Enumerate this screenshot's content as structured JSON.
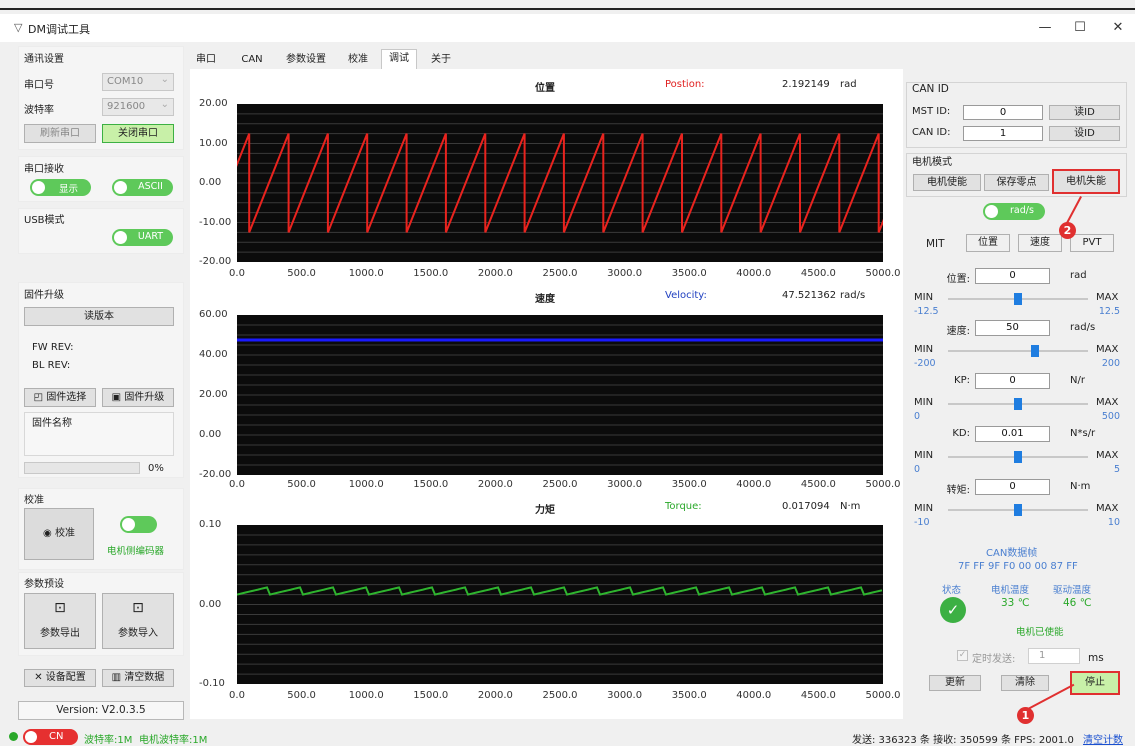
{
  "window": {
    "title": "DM调试工具",
    "min_label": "—",
    "max_label": "☐",
    "close_label": "✕"
  },
  "left": {
    "comm_group": "通讯设置",
    "port_label": "串口号",
    "port_value": "COM10",
    "baud_label": "波特率",
    "baud_value": "921600",
    "refresh_button": "刷新串口",
    "close_port_button": "关闭串口",
    "recv_group": "串口接收",
    "display_toggle": "显示",
    "ascii_toggle": "ASCII",
    "usb_group": "USB模式",
    "uart_toggle": "UART",
    "fw_group": "固件升级",
    "read_version_button": "读版本",
    "fw_rev": "FW REV:",
    "bl_rev": "BL REV:",
    "fw_select_button": "固件选择",
    "fw_upgrade_button": "固件升级",
    "fw_name_label": "固件名称",
    "progress_text": "0%",
    "progress": 0,
    "calib_group": "校准",
    "calib_button": "校准",
    "encoder_label": "电机侧编码器",
    "preset_group": "参数预设",
    "export_button": "参数导出",
    "import_button": "参数导入",
    "device_config_button": "设备配置",
    "clear_data_button": "清空数据",
    "version": "Version: V2.0.3.5"
  },
  "tabs": [
    "串口",
    "CAN",
    "参数设置",
    "校准",
    "调试",
    "关于"
  ],
  "active_tab": 4,
  "plots": [
    {
      "title": "位置",
      "name": "Postion:",
      "value": "2.192149",
      "unit": "rad",
      "name_color": "#e02020",
      "yticks": [
        "20.00",
        "10.00",
        "0.00",
        "-10.00",
        "-20.00"
      ]
    },
    {
      "title": "速度",
      "name": "Velocity:",
      "value": "47.521362",
      "unit": "rad/s",
      "name_color": "#2040c0",
      "yticks": [
        "60.00",
        "40.00",
        "20.00",
        "0.00",
        "-20.00"
      ]
    },
    {
      "title": "力矩",
      "name": "Torque:",
      "value": "0.017094",
      "unit": "N·m",
      "name_color": "#2aa82a",
      "yticks": [
        "0.10",
        "0.00",
        "-0.10"
      ]
    }
  ],
  "xticks": [
    "0.0",
    "500.0",
    "1000.0",
    "1500.0",
    "2000.0",
    "2500.0",
    "3000.0",
    "3500.0",
    "4000.0",
    "4500.0",
    "5000.0"
  ],
  "can": {
    "group": "CAN ID",
    "mst_label": "MST ID:",
    "mst_value": "0",
    "read_id_button": "读ID",
    "can_label": "CAN ID:",
    "can_value": "1",
    "set_id_button": "设ID",
    "mode_group": "电机模式",
    "enable_button": "电机使能",
    "save_zero_button": "保存零点",
    "disable_button": "电机失能",
    "unit_toggle": "rad/s",
    "modes": [
      "MIT",
      "位置",
      "速度",
      "PVT"
    ],
    "params": [
      {
        "label": "位置:",
        "value": "0",
        "unit": "rad",
        "min": "-12.5",
        "max": "12.5",
        "level": 0.5
      },
      {
        "label": "速度:",
        "value": "50",
        "unit": "rad/s",
        "min": "-200",
        "max": "200",
        "level": 0.62
      },
      {
        "label": "KP:",
        "value": "0",
        "unit": "N/r",
        "min": "0",
        "max": "500",
        "level": 0.5
      },
      {
        "label": "KD:",
        "value": "0.01",
        "unit": "N*s/r",
        "min": "0",
        "max": "5",
        "level": 0.5
      },
      {
        "label": "转矩:",
        "value": "0",
        "unit": "N·m",
        "min": "-10",
        "max": "10",
        "level": 0.5
      }
    ],
    "min_label": "MIN",
    "max_label": "MAX",
    "frame_title": "CAN数据帧",
    "frame_data": "7F FF 9F F0 00 00 87 FF",
    "status_label": "状态",
    "motor_temp_label": "电机温度",
    "driver_temp_label": "驱动温度",
    "motor_temp": "33 ℃",
    "driver_temp": "46 ℃",
    "enabled_text": "电机已使能",
    "timed_send_label": "定时发送:",
    "timed_send_value": "1",
    "ms_label": "ms",
    "update_button": "更新",
    "clear_button": "清除",
    "stop_button": "停止"
  },
  "status": {
    "cn_toggle": "CN",
    "baud": "波特率:1M",
    "motor_baud": "电机波特率:1M",
    "stats": "发送: 336323 条 接收: 350599 条 FPS: 2001.0",
    "clear_stats": "清空计数"
  },
  "annotations": [
    "1",
    "2"
  ],
  "colors": {
    "accent_green": "#5ec95a",
    "annotation_red": "#e03030",
    "plot_bg": "#0b0b0b",
    "trace_red": "#e8231e",
    "trace_blue": "#1a1aff",
    "trace_green": "#2fb52f"
  }
}
